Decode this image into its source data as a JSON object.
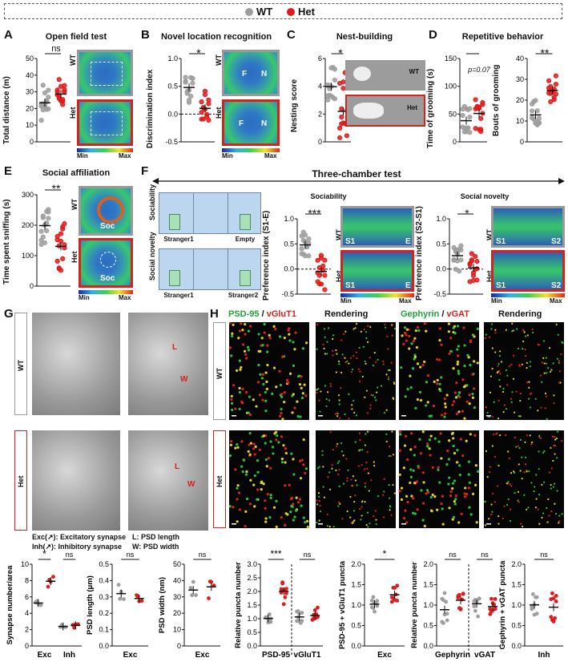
{
  "legend": {
    "wt": "WT",
    "het": "Het",
    "wt_color": "#9e9e9e",
    "het_color": "#e01b1b"
  },
  "panels": {
    "A": {
      "label": "A",
      "title": "Open field test",
      "ylabel": "Total distance (m)",
      "ticks": [
        "50",
        "40",
        "30",
        "20",
        "10",
        "0"
      ],
      "sig": "ns",
      "wt": "WT",
      "het": "Het"
    },
    "B": {
      "label": "B",
      "title": "Novel location recognition",
      "ylabel": "Discrimination index",
      "ticks": [
        "1.0",
        "0.5",
        "0.0",
        "-0.5"
      ],
      "sig": "*",
      "wt": "WT",
      "het": "Het",
      "f": "F",
      "n": "N"
    },
    "C": {
      "label": "C",
      "title": "Nest-building",
      "ylabel": "Nesting score",
      "ticks": [
        "6",
        "4",
        "2",
        "0"
      ],
      "sig": "*",
      "wt": "WT",
      "het": "Het"
    },
    "D": {
      "label": "D",
      "title": "Repetitive behavior",
      "ylabel1": "Time of grooming (s)",
      "ticks1": [
        "150",
        "100",
        "50",
        "0"
      ],
      "sig1": "p=0.07",
      "ylabel2": "Bouts of grooming",
      "ticks2": [
        "40",
        "30",
        "20",
        "10",
        "0"
      ],
      "sig2": "**"
    },
    "E": {
      "label": "E",
      "title": "Social affiliation",
      "ylabel": "Time spent sniffing (s)",
      "ticks": [
        "300",
        "200",
        "100",
        "0"
      ],
      "sig": "**",
      "wt": "WT",
      "het": "Het",
      "soc": "Soc"
    },
    "F": {
      "label": "F",
      "title": "Three-chamber test",
      "sociability": "Sociability",
      "social_novelty": "Social novelty",
      "stranger1": "Stranger1",
      "empty": "Empty",
      "stranger2": "Stranger2",
      "ylabel1": "Preference index (S1-E)",
      "ticks1": [
        "1.0",
        "0.5",
        "0.0",
        "-0.5"
      ],
      "sig1": "***",
      "ylabel2": "Preference index (S2-S1)",
      "ticks2": [
        "1.0",
        "0.5",
        "0.0",
        "-0.5"
      ],
      "sig2": "*",
      "s1": "S1",
      "e": "E",
      "s2": "S2",
      "wt": "WT",
      "het": "Het"
    },
    "G": {
      "label": "G",
      "wt": "WT",
      "het": "Het",
      "l": "L",
      "w": "W",
      "exc_caption": "Exc(↗): Excitatory synapse",
      "inh_caption": "Inh(↗): Inhibitory synapse",
      "l_caption": "L: PSD length",
      "w_caption": "W: PSD width"
    },
    "H": {
      "label": "H",
      "psd95": "PSD-95",
      "vglut1": "vGluT1",
      "rendering": "Rendering",
      "gephyrin": "Gephyrin",
      "vgat": "vGAT",
      "wt": "WT",
      "het": "Het",
      "slash": " / "
    }
  },
  "scale": {
    "min": "Min",
    "max": "Max"
  },
  "bottom": {
    "g1": {
      "ylabel": "Synapse number/area",
      "ticks": [
        "10",
        "8",
        "6",
        "4",
        "2",
        "0"
      ],
      "x": [
        "Exc",
        "Inh"
      ],
      "sig": [
        "*",
        "ns"
      ]
    },
    "g2": {
      "ylabel": "PSD length (μm)",
      "ticks": [
        "0.5",
        "0.4",
        "0.3",
        "0.2",
        "0.1",
        "0.0"
      ],
      "x": [
        "Exc"
      ],
      "sig": [
        "ns"
      ]
    },
    "g3": {
      "ylabel": "PSD width (nm)",
      "ticks": [
        "50",
        "40",
        "30",
        "20",
        "10",
        "0"
      ],
      "x": [
        "Exc"
      ],
      "sig": [
        "ns"
      ]
    },
    "h1": {
      "ylabel": "Relative puncta number",
      "ticks": [
        "3.0",
        "2.5",
        "2.0",
        "1.5",
        "1.0",
        "0.5",
        "0.0"
      ],
      "x": [
        "PSD-95",
        "vGluT1"
      ],
      "sig": [
        "***",
        "ns"
      ]
    },
    "h2": {
      "ylabel": "PSD-95 + vGluT1 puncta",
      "ticks": [
        "2.0",
        "1.5",
        "1.0",
        "0.5",
        "0.0"
      ],
      "x": [
        "Exc"
      ],
      "sig": [
        "*"
      ]
    },
    "h3": {
      "ylabel": "Relative puncta number",
      "ticks": [
        "2.0",
        "1.5",
        "1.0",
        "0.5",
        "0.0"
      ],
      "x": [
        "Gephyrin",
        "vGAT"
      ],
      "sig": [
        "ns",
        "ns"
      ]
    },
    "h4": {
      "ylabel": "Gephyrin + vGAT puncta",
      "ticks": [
        "2.0",
        "1.5",
        "1.0",
        "0.5",
        "0.0"
      ],
      "x": [
        "Inh"
      ],
      "sig": [
        "ns"
      ]
    }
  }
}
